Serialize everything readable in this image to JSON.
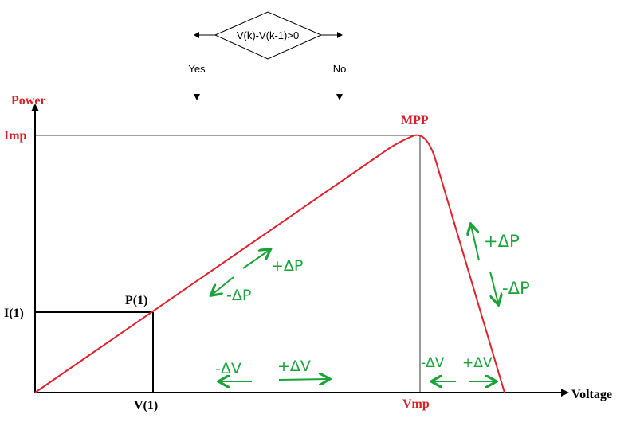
{
  "flowchart": {
    "condition": "V(k)-V(k-1)>0",
    "yes_label": "Yes",
    "no_label": "No"
  },
  "axes": {
    "y_label": "Power",
    "x_label": "Voltage"
  },
  "labels": {
    "imp": "Imp",
    "mpp": "MPP",
    "i1": "I(1)",
    "p1": "P(1)",
    "v1": "V(1)",
    "vmp": "Vmp"
  },
  "annotations": {
    "slope_plus_dp": "+ΔP",
    "slope_minus_dp": "-ΔP",
    "left_minus_dv": "-ΔV",
    "left_plus_dv": "+ΔV",
    "right_minus_dv": "-ΔV",
    "right_plus_dv": "+ΔV",
    "fall_plus_dp": "+ΔP",
    "fall_minus_dp": "-ΔP"
  },
  "colors": {
    "curve": "#e0202a",
    "label_red": "#d42026",
    "annotation_green": "#1aa33a",
    "ink": "#000000"
  }
}
